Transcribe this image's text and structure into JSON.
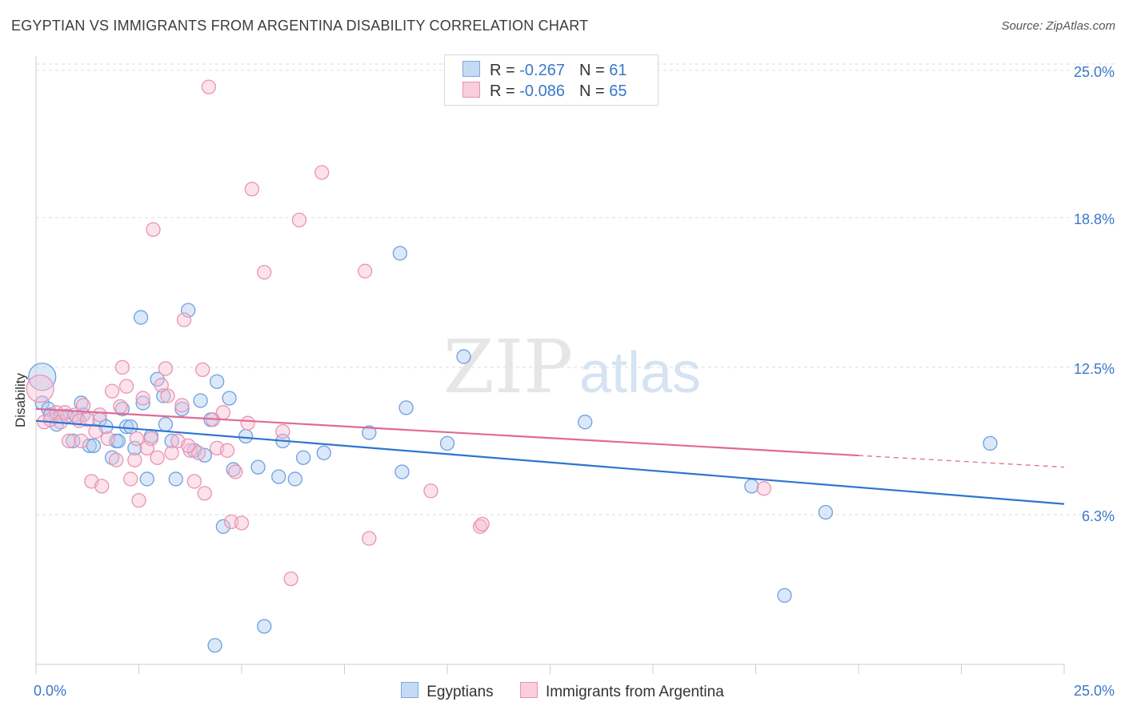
{
  "title": "EGYPTIAN VS IMMIGRANTS FROM ARGENTINA DISABILITY CORRELATION CHART",
  "source": "Source: ZipAtlas.com",
  "watermark": {
    "zip": "ZIP",
    "atlas": "atlas"
  },
  "stats": [
    {
      "r_label": "R = ",
      "r_value": "-0.267",
      "n_label": "N = ",
      "n_value": "61",
      "color": "#7aa8e0",
      "fill": "#c5dbf5"
    },
    {
      "r_label": "R = ",
      "r_value": "-0.086",
      "n_label": "N = ",
      "n_value": "65",
      "color": "#ec8fb0",
      "fill": "#f9cfdd"
    }
  ],
  "legend": [
    {
      "label": "Egyptians",
      "color": "#7aa8e0",
      "fill": "#c5dbf5"
    },
    {
      "label": "Immigrants from Argentina",
      "color": "#ec8fb0",
      "fill": "#f9cfdd"
    }
  ],
  "chart_data": {
    "type": "scatter",
    "title": "EGYPTIAN VS IMMIGRANTS FROM ARGENTINA DISABILITY CORRELATION CHART",
    "xlabel": "",
    "ylabel": "Disability",
    "xlim": [
      0,
      25
    ],
    "ylim": [
      0,
      25.6
    ],
    "x_tick_labels": [
      "0.0%",
      "25.0%"
    ],
    "y_ticks": [
      6.3,
      12.5,
      18.8,
      25.0
    ],
    "y_tick_labels": [
      "6.3%",
      "12.5%",
      "18.8%",
      "25.0%"
    ],
    "grid": true,
    "series": [
      {
        "name": "Egyptians",
        "color": "#3a78c8",
        "line_color": "#2f74d0",
        "fill": "rgba(176,205,242,0.45)",
        "stroke": "#6fa0dd",
        "trend": {
          "x0": 0,
          "y0": 10.25,
          "x1": 25,
          "y1": 6.75,
          "dash_from": null
        },
        "points": [
          {
            "x": 0.15,
            "y": 12.1,
            "big": true
          },
          {
            "x": 0.15,
            "y": 11.0
          },
          {
            "x": 0.3,
            "y": 10.75
          },
          {
            "x": 0.35,
            "y": 10.5
          },
          {
            "x": 0.5,
            "y": 10.1
          },
          {
            "x": 0.6,
            "y": 10.45
          },
          {
            "x": 0.75,
            "y": 10.45
          },
          {
            "x": 0.9,
            "y": 9.4
          },
          {
            "x": 1.1,
            "y": 11.0
          },
          {
            "x": 1.15,
            "y": 10.5
          },
          {
            "x": 1.3,
            "y": 9.2
          },
          {
            "x": 1.4,
            "y": 9.2
          },
          {
            "x": 1.55,
            "y": 10.3
          },
          {
            "x": 1.7,
            "y": 10.0
          },
          {
            "x": 1.85,
            "y": 8.7
          },
          {
            "x": 1.95,
            "y": 9.4
          },
          {
            "x": 2.1,
            "y": 10.75
          },
          {
            "x": 2.2,
            "y": 10.0
          },
          {
            "x": 2.3,
            "y": 10.0
          },
          {
            "x": 2.4,
            "y": 9.1
          },
          {
            "x": 2.55,
            "y": 14.6
          },
          {
            "x": 2.6,
            "y": 11.0
          },
          {
            "x": 2.7,
            "y": 7.8
          },
          {
            "x": 2.8,
            "y": 9.6
          },
          {
            "x": 2.95,
            "y": 12.0
          },
          {
            "x": 3.1,
            "y": 11.3
          },
          {
            "x": 3.15,
            "y": 10.1
          },
          {
            "x": 3.3,
            "y": 9.4
          },
          {
            "x": 3.4,
            "y": 7.8
          },
          {
            "x": 3.55,
            "y": 10.75
          },
          {
            "x": 3.7,
            "y": 14.9
          },
          {
            "x": 3.85,
            "y": 9.0
          },
          {
            "x": 4.0,
            "y": 11.1
          },
          {
            "x": 4.1,
            "y": 8.8
          },
          {
            "x": 4.25,
            "y": 10.3
          },
          {
            "x": 4.35,
            "y": 0.8
          },
          {
            "x": 4.4,
            "y": 11.9
          },
          {
            "x": 4.55,
            "y": 5.8
          },
          {
            "x": 4.7,
            "y": 11.2
          },
          {
            "x": 4.8,
            "y": 8.2
          },
          {
            "x": 5.1,
            "y": 9.6
          },
          {
            "x": 5.4,
            "y": 8.3
          },
          {
            "x": 5.55,
            "y": 1.6
          },
          {
            "x": 5.9,
            "y": 7.9
          },
          {
            "x": 6.0,
            "y": 9.4
          },
          {
            "x": 6.3,
            "y": 7.8
          },
          {
            "x": 6.5,
            "y": 8.7
          },
          {
            "x": 7.0,
            "y": 8.9
          },
          {
            "x": 8.1,
            "y": 9.75
          },
          {
            "x": 8.85,
            "y": 17.3
          },
          {
            "x": 8.9,
            "y": 8.1
          },
          {
            "x": 9.0,
            "y": 10.8
          },
          {
            "x": 10.0,
            "y": 9.3
          },
          {
            "x": 10.4,
            "y": 12.95
          },
          {
            "x": 13.35,
            "y": 10.2
          },
          {
            "x": 17.4,
            "y": 7.5
          },
          {
            "x": 18.2,
            "y": 2.9
          },
          {
            "x": 19.2,
            "y": 6.4
          },
          {
            "x": 23.2,
            "y": 9.3
          },
          {
            "x": 1.0,
            "y": 10.4
          },
          {
            "x": 2.0,
            "y": 9.4
          }
        ]
      },
      {
        "name": "Immigrants from Argentina",
        "color": "#e05a8a",
        "line_color": "#e06a95",
        "fill": "rgba(247,190,210,0.45)",
        "stroke": "#eb93b3",
        "trend": {
          "x0": 0,
          "y0": 10.75,
          "x1": 25,
          "y1": 8.3,
          "dash_from": 20.0
        },
        "points": [
          {
            "x": 0.1,
            "y": 11.6,
            "big": true
          },
          {
            "x": 0.2,
            "y": 10.2
          },
          {
            "x": 0.35,
            "y": 10.3
          },
          {
            "x": 0.5,
            "y": 10.6
          },
          {
            "x": 0.6,
            "y": 10.2
          },
          {
            "x": 0.7,
            "y": 10.6
          },
          {
            "x": 0.8,
            "y": 9.4
          },
          {
            "x": 0.95,
            "y": 10.5
          },
          {
            "x": 1.05,
            "y": 10.25
          },
          {
            "x": 1.15,
            "y": 10.9
          },
          {
            "x": 1.25,
            "y": 10.3
          },
          {
            "x": 1.35,
            "y": 7.7
          },
          {
            "x": 1.45,
            "y": 9.8
          },
          {
            "x": 1.55,
            "y": 10.5
          },
          {
            "x": 1.6,
            "y": 7.5
          },
          {
            "x": 1.75,
            "y": 9.5
          },
          {
            "x": 1.85,
            "y": 11.5
          },
          {
            "x": 1.95,
            "y": 8.6
          },
          {
            "x": 2.05,
            "y": 10.85
          },
          {
            "x": 2.1,
            "y": 12.5
          },
          {
            "x": 2.2,
            "y": 11.7
          },
          {
            "x": 2.3,
            "y": 7.8
          },
          {
            "x": 2.4,
            "y": 8.6
          },
          {
            "x": 2.5,
            "y": 6.9
          },
          {
            "x": 2.6,
            "y": 11.2
          },
          {
            "x": 2.7,
            "y": 9.1
          },
          {
            "x": 2.8,
            "y": 9.5
          },
          {
            "x": 2.85,
            "y": 18.3
          },
          {
            "x": 2.95,
            "y": 8.7
          },
          {
            "x": 3.05,
            "y": 11.75
          },
          {
            "x": 3.15,
            "y": 12.45
          },
          {
            "x": 3.2,
            "y": 11.3
          },
          {
            "x": 3.3,
            "y": 8.9
          },
          {
            "x": 3.45,
            "y": 9.4
          },
          {
            "x": 3.55,
            "y": 10.9
          },
          {
            "x": 3.6,
            "y": 14.5
          },
          {
            "x": 3.75,
            "y": 9.0
          },
          {
            "x": 3.85,
            "y": 7.7
          },
          {
            "x": 3.95,
            "y": 8.9
          },
          {
            "x": 4.05,
            "y": 12.4
          },
          {
            "x": 4.1,
            "y": 7.2
          },
          {
            "x": 4.2,
            "y": 24.3
          },
          {
            "x": 4.3,
            "y": 10.3
          },
          {
            "x": 4.4,
            "y": 9.1
          },
          {
            "x": 4.55,
            "y": 10.6
          },
          {
            "x": 4.65,
            "y": 9.0
          },
          {
            "x": 4.75,
            "y": 6.0
          },
          {
            "x": 4.85,
            "y": 8.1
          },
          {
            "x": 5.0,
            "y": 5.95
          },
          {
            "x": 5.15,
            "y": 10.15
          },
          {
            "x": 5.25,
            "y": 20.0
          },
          {
            "x": 5.55,
            "y": 16.5
          },
          {
            "x": 6.0,
            "y": 9.8
          },
          {
            "x": 6.2,
            "y": 3.6
          },
          {
            "x": 6.4,
            "y": 18.7
          },
          {
            "x": 6.95,
            "y": 20.7
          },
          {
            "x": 8.0,
            "y": 16.55
          },
          {
            "x": 8.1,
            "y": 5.3
          },
          {
            "x": 9.6,
            "y": 7.3
          },
          {
            "x": 10.8,
            "y": 5.8
          },
          {
            "x": 10.85,
            "y": 5.9
          },
          {
            "x": 17.7,
            "y": 7.4
          },
          {
            "x": 1.1,
            "y": 9.4
          },
          {
            "x": 2.45,
            "y": 9.5
          },
          {
            "x": 3.7,
            "y": 9.2
          }
        ]
      }
    ]
  }
}
